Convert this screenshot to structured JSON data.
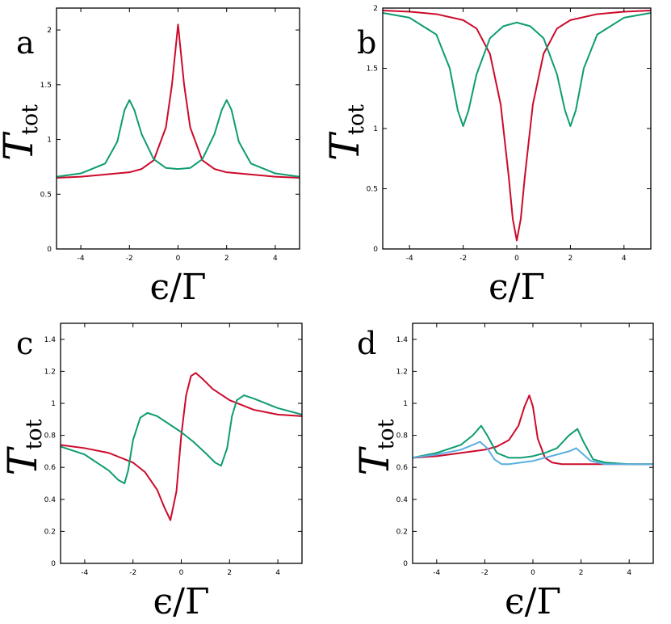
{
  "chart_data": [
    {
      "panel": "a",
      "type": "line",
      "xlim": [
        -5,
        5
      ],
      "ylim": [
        0,
        2.2
      ],
      "xticks": [
        -4,
        -2,
        0,
        2,
        4
      ],
      "xtick_labels": [
        "-4",
        "-2",
        "0",
        "2",
        "4"
      ],
      "yticks": [
        0,
        0.5,
        1,
        1.5,
        2
      ],
      "ytick_labels": [
        "0",
        "0.5",
        "1",
        "1.5",
        "2"
      ],
      "xlabel": "ϵ/Γ",
      "ylabel": "T",
      "ylabel_sub": "tot",
      "grid": false,
      "series": [
        {
          "color": "#cc0a2b",
          "x": [
            -5,
            -4,
            -3,
            -2,
            -1.5,
            -1,
            -0.5,
            -0.25,
            0,
            0.25,
            0.5,
            1,
            1.5,
            2,
            3,
            4,
            5
          ],
          "y": [
            0.65,
            0.66,
            0.68,
            0.7,
            0.73,
            0.81,
            1.11,
            1.5,
            2.05,
            1.5,
            1.11,
            0.81,
            0.73,
            0.7,
            0.68,
            0.66,
            0.65
          ]
        },
        {
          "color": "#0e9c72",
          "x": [
            -5,
            -4,
            -3,
            -2.5,
            -2.2,
            -2,
            -1.8,
            -1.5,
            -1,
            -0.5,
            0,
            0.5,
            1,
            1.5,
            1.8,
            2,
            2.2,
            2.5,
            3,
            4,
            5
          ],
          "y": [
            0.66,
            0.69,
            0.78,
            0.98,
            1.27,
            1.36,
            1.27,
            1.05,
            0.82,
            0.74,
            0.73,
            0.74,
            0.82,
            1.05,
            1.27,
            1.36,
            1.27,
            0.98,
            0.78,
            0.69,
            0.66
          ]
        }
      ]
    },
    {
      "panel": "b",
      "type": "line",
      "xlim": [
        -5,
        5
      ],
      "ylim": [
        0,
        2
      ],
      "xticks": [
        -4,
        -2,
        0,
        2,
        4
      ],
      "xtick_labels": [
        "-4",
        "-2",
        "0",
        "2",
        "4"
      ],
      "yticks": [
        0,
        0.5,
        1,
        1.5,
        2
      ],
      "ytick_labels": [
        "0",
        "0.5",
        "1",
        "1.5",
        "2"
      ],
      "xlabel": "ϵ/Γ",
      "ylabel": "T",
      "ylabel_sub": "tot",
      "grid": false,
      "series": [
        {
          "color": "#cc0a2b",
          "x": [
            -5,
            -4,
            -3,
            -2,
            -1.5,
            -1,
            -0.6,
            -0.3,
            -0.15,
            0,
            0.15,
            0.3,
            0.6,
            1,
            1.5,
            2,
            3,
            4,
            5
          ],
          "y": [
            1.98,
            1.97,
            1.95,
            1.9,
            1.83,
            1.62,
            1.2,
            0.6,
            0.25,
            0.07,
            0.25,
            0.6,
            1.2,
            1.62,
            1.83,
            1.9,
            1.95,
            1.97,
            1.98
          ]
        },
        {
          "color": "#0e9c72",
          "x": [
            -5,
            -4,
            -3,
            -2.5,
            -2.2,
            -2,
            -1.8,
            -1.5,
            -1,
            -0.5,
            0,
            0.5,
            1,
            1.5,
            1.8,
            2,
            2.2,
            2.5,
            3,
            4,
            5
          ],
          "y": [
            1.96,
            1.92,
            1.78,
            1.5,
            1.15,
            1.02,
            1.15,
            1.45,
            1.75,
            1.85,
            1.88,
            1.85,
            1.75,
            1.45,
            1.15,
            1.02,
            1.15,
            1.5,
            1.78,
            1.92,
            1.96
          ]
        }
      ]
    },
    {
      "panel": "c",
      "type": "line",
      "xlim": [
        -5,
        5
      ],
      "ylim": [
        0,
        1.5
      ],
      "xticks": [
        -4,
        -2,
        0,
        2,
        4
      ],
      "xtick_labels": [
        "-4",
        "-2",
        "0",
        "2",
        "4"
      ],
      "yticks": [
        0,
        0.2,
        0.4,
        0.6,
        0.8,
        1,
        1.2,
        1.4
      ],
      "ytick_labels": [
        "0",
        "0.2",
        "0.4",
        "0.6",
        "0.8",
        "1",
        "1.2",
        "1.4"
      ],
      "xlabel": "ϵ/Γ",
      "ylabel": "T",
      "ylabel_sub": "tot",
      "grid": false,
      "series": [
        {
          "color": "#cc0a2b",
          "x": [
            -5,
            -4,
            -3,
            -2,
            -1.5,
            -1,
            -0.7,
            -0.45,
            -0.2,
            0,
            0.2,
            0.4,
            0.6,
            0.9,
            1.3,
            2,
            3,
            4,
            5
          ],
          "y": [
            0.74,
            0.72,
            0.69,
            0.63,
            0.57,
            0.46,
            0.35,
            0.27,
            0.45,
            0.8,
            1.05,
            1.17,
            1.19,
            1.15,
            1.09,
            1.02,
            0.96,
            0.93,
            0.92
          ]
        },
        {
          "color": "#0e9c72",
          "x": [
            -5,
            -4,
            -3,
            -2.6,
            -2.35,
            -2.2,
            -2,
            -1.7,
            -1.4,
            -1,
            -0.5,
            0,
            0.5,
            1,
            1.4,
            1.65,
            1.9,
            2.1,
            2.3,
            2.6,
            3,
            4,
            5
          ],
          "y": [
            0.73,
            0.68,
            0.58,
            0.52,
            0.5,
            0.58,
            0.77,
            0.91,
            0.94,
            0.92,
            0.87,
            0.82,
            0.76,
            0.69,
            0.63,
            0.61,
            0.72,
            0.92,
            1.02,
            1.05,
            1.03,
            0.97,
            0.93
          ]
        }
      ]
    },
    {
      "panel": "d",
      "type": "line",
      "xlim": [
        -5,
        5
      ],
      "ylim": [
        0,
        1.5
      ],
      "xticks": [
        -4,
        -2,
        0,
        2,
        4
      ],
      "xtick_labels": [
        "-4",
        "-2",
        "0",
        "2",
        "4"
      ],
      "yticks": [
        0,
        0.2,
        0.4,
        0.6,
        0.8,
        1,
        1.2,
        1.4
      ],
      "ytick_labels": [
        "0",
        "0.2",
        "0.4",
        "0.6",
        "0.8",
        "1",
        "1.2",
        "1.4"
      ],
      "xlabel": "ϵ/Γ",
      "ylabel": "T",
      "ylabel_sub": "tot",
      "grid": false,
      "series": [
        {
          "color": "#cc0a2b",
          "x": [
            -5,
            -4,
            -3,
            -2,
            -1.5,
            -1,
            -0.6,
            -0.35,
            -0.15,
            0,
            0.2,
            0.5,
            0.8,
            1.2,
            2,
            3,
            4,
            5
          ],
          "y": [
            0.66,
            0.67,
            0.69,
            0.71,
            0.73,
            0.77,
            0.86,
            0.98,
            1.05,
            0.98,
            0.78,
            0.66,
            0.63,
            0.62,
            0.62,
            0.62,
            0.62,
            0.62
          ]
        },
        {
          "color": "#0e9c72",
          "x": [
            -5,
            -4,
            -3,
            -2.5,
            -2.15,
            -1.9,
            -1.5,
            -1,
            -0.5,
            0,
            0.5,
            1,
            1.5,
            1.85,
            2.1,
            2.5,
            3,
            4,
            5
          ],
          "y": [
            0.66,
            0.69,
            0.74,
            0.8,
            0.86,
            0.8,
            0.69,
            0.66,
            0.66,
            0.67,
            0.69,
            0.72,
            0.8,
            0.84,
            0.76,
            0.65,
            0.63,
            0.62,
            0.62
          ]
        },
        {
          "color": "#5aafe0",
          "x": [
            -5,
            -4,
            -3,
            -2.5,
            -2.2,
            -1.9,
            -1.6,
            -1.3,
            -1,
            -0.5,
            0,
            0.5,
            1,
            1.5,
            1.8,
            2.1,
            2.4,
            3,
            4,
            5
          ],
          "y": [
            0.66,
            0.68,
            0.71,
            0.74,
            0.76,
            0.72,
            0.65,
            0.62,
            0.62,
            0.63,
            0.64,
            0.66,
            0.68,
            0.7,
            0.72,
            0.68,
            0.64,
            0.62,
            0.62,
            0.62
          ]
        }
      ]
    }
  ],
  "panel_letters": [
    "a",
    "b",
    "c",
    "d"
  ]
}
